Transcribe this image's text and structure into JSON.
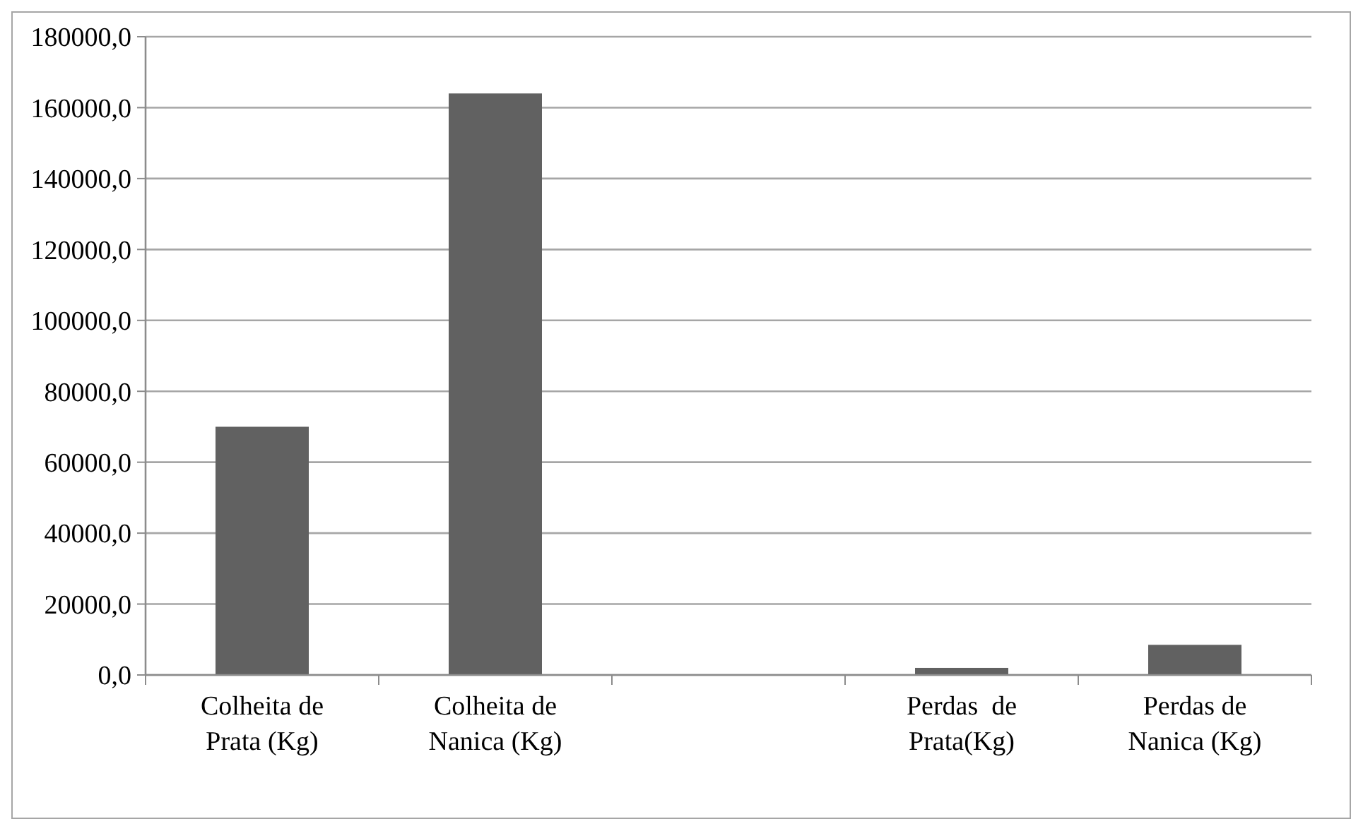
{
  "chart_data": {
    "type": "bar",
    "categories": [
      "Colheita de\nPrata (Kg)",
      "Colheita de\nNanica (Kg)",
      null,
      "Perdas  de\nPrata(Kg)",
      "Perdas de\nNanica (Kg)"
    ],
    "values": [
      70000,
      164000,
      null,
      2000,
      8500
    ],
    "color": "#616161",
    "ylim": [
      0,
      180000
    ],
    "yticks": [
      {
        "value": 0,
        "label": "0,0"
      },
      {
        "value": 20000,
        "label": "20000,0"
      },
      {
        "value": 40000,
        "label": "40000,0"
      },
      {
        "value": 60000,
        "label": "60000,0"
      },
      {
        "value": 80000,
        "label": "80000,0"
      },
      {
        "value": 100000,
        "label": "100000,0"
      },
      {
        "value": 120000,
        "label": "120000,0"
      },
      {
        "value": 140000,
        "label": "140000,0"
      },
      {
        "value": 160000,
        "label": "160000,0"
      },
      {
        "value": 180000,
        "label": "180000,0"
      }
    ],
    "grid": "y"
  }
}
